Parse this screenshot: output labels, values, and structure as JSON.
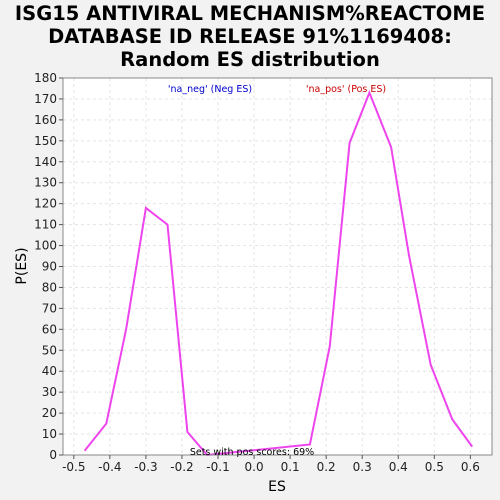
{
  "chart_data": {
    "type": "line",
    "title": [
      "ISG15 ANTIVIRAL MECHANISM%REACTOME",
      "DATABASE ID RELEASE 91%1169408:",
      "Random ES distribution"
    ],
    "xlabel": "ES",
    "ylabel": "P(ES)",
    "xlim": [
      -0.53,
      0.66
    ],
    "ylim": [
      0,
      180
    ],
    "xticks": [
      "-0.5",
      "-0.4",
      "-0.3",
      "-0.2",
      "-0.1",
      "0.0",
      "0.1",
      "0.2",
      "0.3",
      "0.4",
      "0.5",
      "0.6"
    ],
    "yticks": [
      "0",
      "10",
      "20",
      "30",
      "40",
      "50",
      "60",
      "70",
      "80",
      "90",
      "100",
      "110",
      "120",
      "130",
      "140",
      "150",
      "160",
      "170",
      "180"
    ],
    "grid": true,
    "legend": [
      {
        "label": "'na_neg' (Neg ES)",
        "color": "#0000cc"
      },
      {
        "label": "'na_pos' (Pos ES)",
        "color": "#cc0000"
      }
    ],
    "annotation": "Sets with pos scores: 69%",
    "series": [
      {
        "color": "#ee44ee",
        "x": [
          -0.47,
          -0.41,
          -0.355,
          -0.3,
          -0.24,
          -0.185,
          -0.13,
          0.155,
          0.21,
          0.265,
          0.32,
          0.38,
          0.43,
          0.49,
          0.55,
          0.605
        ],
        "y": [
          2,
          15,
          60,
          118,
          110,
          11,
          0,
          5,
          52,
          149,
          173,
          147,
          95,
          43,
          17,
          4
        ]
      }
    ]
  }
}
